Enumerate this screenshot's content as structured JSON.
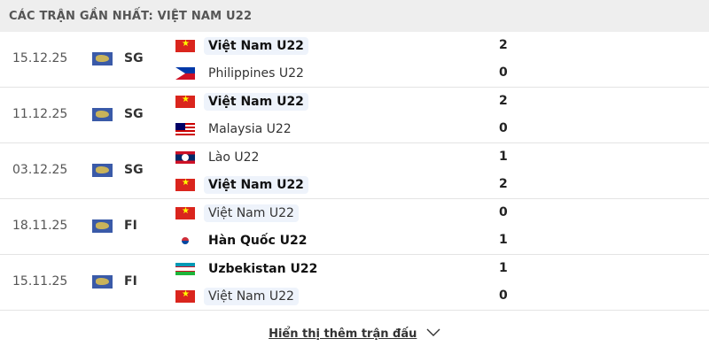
{
  "title": "CÁC TRẬN GẦN NHẤT: VIỆT NAM U22",
  "matches": [
    {
      "date": "15.12.25",
      "competition": "SG",
      "home": {
        "name": "Việt Nam U22",
        "flag": "vn",
        "score": "2",
        "winner": true,
        "highlight": true
      },
      "away": {
        "name": "Philippines U22",
        "flag": "ph",
        "score": "0",
        "winner": false,
        "highlight": false
      }
    },
    {
      "date": "11.12.25",
      "competition": "SG",
      "home": {
        "name": "Việt Nam U22",
        "flag": "vn",
        "score": "2",
        "winner": true,
        "highlight": true
      },
      "away": {
        "name": "Malaysia U22",
        "flag": "my",
        "score": "0",
        "winner": false,
        "highlight": false
      }
    },
    {
      "date": "03.12.25",
      "competition": "SG",
      "home": {
        "name": "Lào U22",
        "flag": "la",
        "score": "1",
        "winner": false,
        "highlight": false
      },
      "away": {
        "name": "Việt Nam U22",
        "flag": "vn",
        "score": "2",
        "winner": true,
        "highlight": true
      }
    },
    {
      "date": "18.11.25",
      "competition": "FI",
      "home": {
        "name": "Việt Nam U22",
        "flag": "vn",
        "score": "0",
        "winner": false,
        "highlight": true
      },
      "away": {
        "name": "Hàn Quốc U22",
        "flag": "kr",
        "score": "1",
        "winner": true,
        "highlight": false
      }
    },
    {
      "date": "15.11.25",
      "competition": "FI",
      "home": {
        "name": "Uzbekistan U22",
        "flag": "uz",
        "score": "1",
        "winner": true,
        "highlight": false
      },
      "away": {
        "name": "Việt Nam U22",
        "flag": "vn",
        "score": "0",
        "winner": false,
        "highlight": true
      }
    }
  ],
  "show_more": "Hiển thị thêm trận đấu",
  "icons": {
    "competition": "world-globe-icon",
    "show_more": "chevron-down-icon"
  }
}
